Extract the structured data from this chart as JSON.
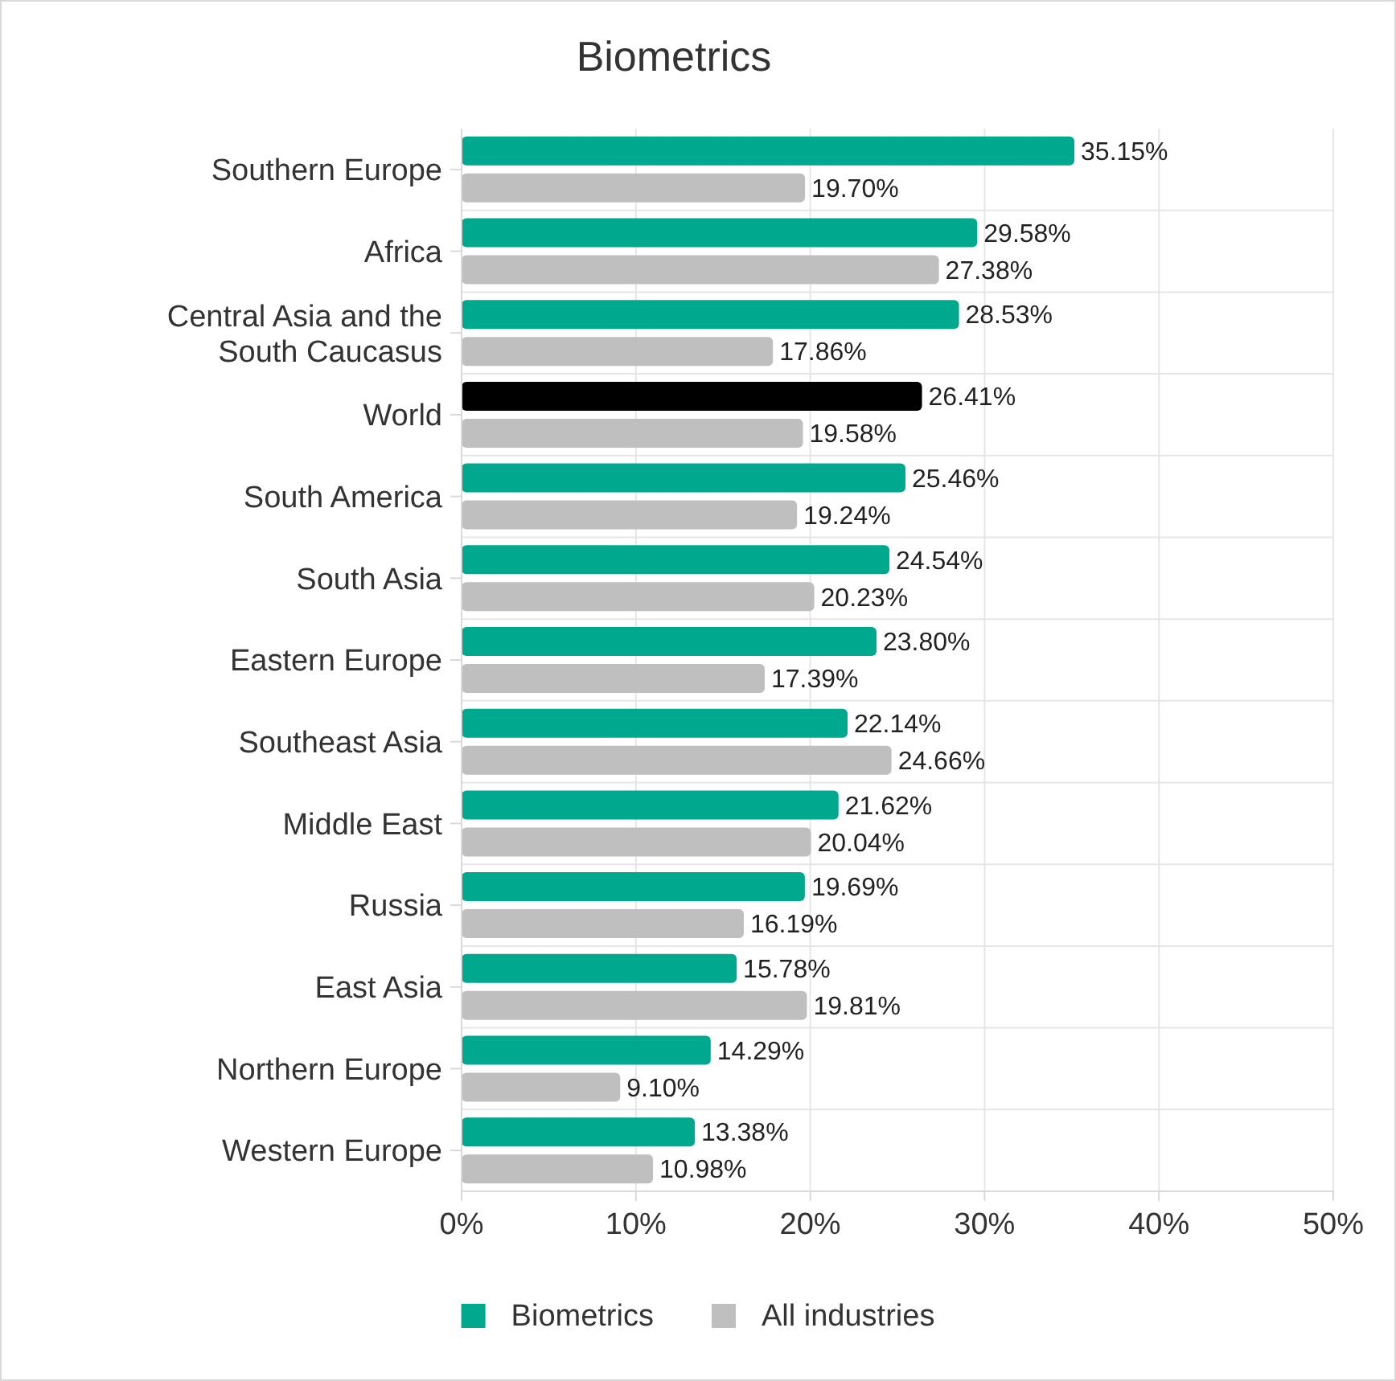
{
  "chart_data": {
    "type": "bar",
    "orientation": "horizontal",
    "title": "Biometrics",
    "categories": [
      "Southern Europe",
      "Africa",
      "Central Asia and the South Caucasus",
      "World",
      "South America",
      "South Asia",
      "Eastern Europe",
      "Southeast Asia",
      "Middle East",
      "Russia",
      "East Asia",
      "Northern Europe",
      "Western Europe"
    ],
    "series": [
      {
        "name": "Biometrics",
        "color": "#00a88e",
        "colors": [
          "#00a88e",
          "#00a88e",
          "#00a88e",
          "#000000",
          "#00a88e",
          "#00a88e",
          "#00a88e",
          "#00a88e",
          "#00a88e",
          "#00a88e",
          "#00a88e",
          "#00a88e",
          "#00a88e"
        ],
        "values": [
          35.15,
          29.58,
          28.53,
          26.41,
          25.46,
          24.54,
          23.8,
          22.14,
          21.62,
          19.69,
          15.78,
          14.29,
          13.38
        ],
        "value_labels": [
          "35.15%",
          "29.58%",
          "28.53%",
          "26.41%",
          "25.46%",
          "24.54%",
          "23.80%",
          "22.14%",
          "21.62%",
          "19.69%",
          "15.78%",
          "14.29%",
          "13.38%"
        ]
      },
      {
        "name": "All industries",
        "color": "#bfbfbf",
        "values": [
          19.7,
          27.38,
          17.86,
          19.58,
          19.24,
          20.23,
          17.39,
          24.66,
          20.04,
          16.19,
          19.81,
          9.1,
          10.98
        ],
        "value_labels": [
          "19.70%",
          "27.38%",
          "17.86%",
          "19.58%",
          "19.24%",
          "20.23%",
          "17.39%",
          "24.66%",
          "20.04%",
          "16.19%",
          "19.81%",
          "9.10%",
          "10.98%"
        ]
      }
    ],
    "xlim": [
      0,
      50
    ],
    "xticks": [
      {
        "value": 0,
        "label": "0%"
      },
      {
        "value": 10,
        "label": "10%"
      },
      {
        "value": 20,
        "label": "20%"
      },
      {
        "value": 30,
        "label": "30%"
      },
      {
        "value": 40,
        "label": "40%"
      },
      {
        "value": 50,
        "label": "50%"
      }
    ],
    "grid": true,
    "legend": "bottom"
  }
}
